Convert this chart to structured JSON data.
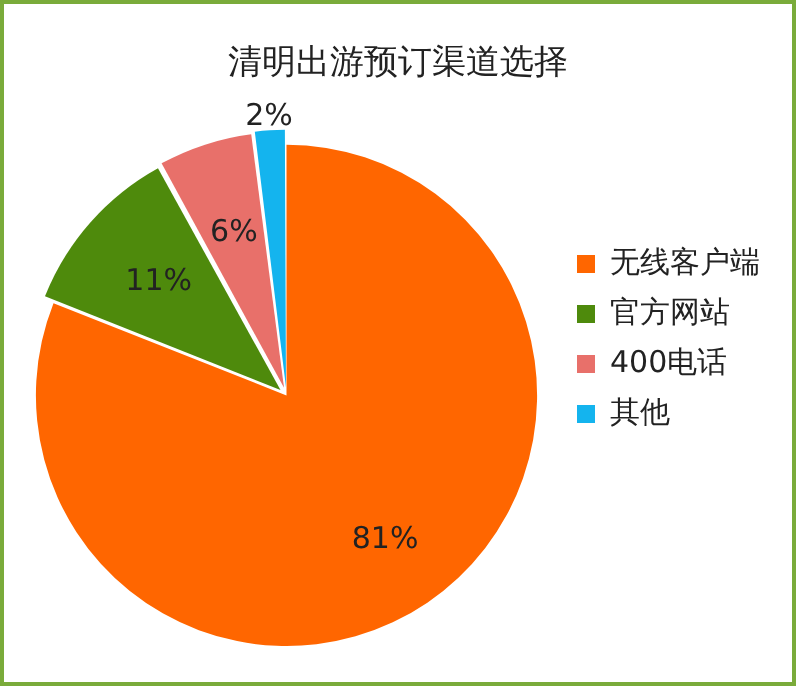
{
  "chart_data": {
    "type": "pie",
    "title": "清明出游预订渠道选择",
    "categories": [
      "无线客户端",
      "官方网站",
      "400电话",
      "其他"
    ],
    "values": [
      81,
      11,
      6,
      2
    ],
    "colors": [
      "#ff6600",
      "#4e8a0c",
      "#e8706a",
      "#14b4ee"
    ],
    "value_labels": [
      "81%",
      "11%",
      "6%",
      "2%"
    ],
    "legend": "right"
  }
}
